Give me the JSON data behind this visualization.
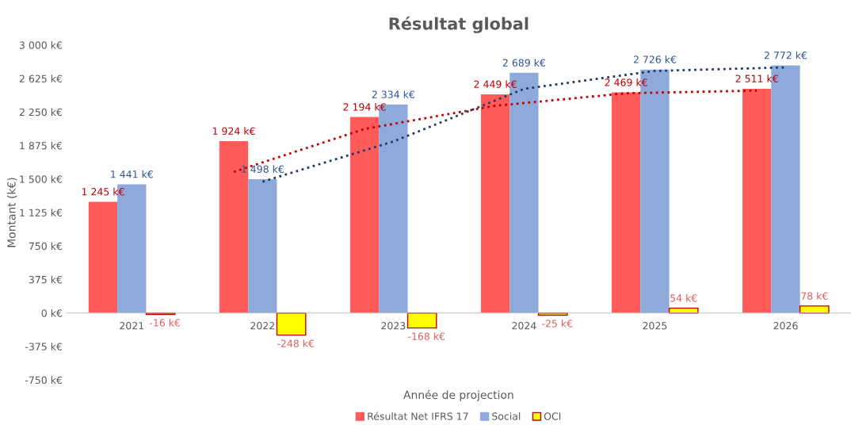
{
  "chart_data": {
    "type": "bar",
    "title": "Résultat global",
    "xlabel": "Année de projection",
    "ylabel": "Montant (k€)",
    "categories": [
      "2021",
      "2022",
      "2023",
      "2024",
      "2025",
      "2026"
    ],
    "series": [
      {
        "name": "Résultat Net IFRS 17",
        "color": "#ff5b5b",
        "values": [
          1245,
          1924,
          2194,
          2449,
          2469,
          2511
        ],
        "value_labels": [
          "1 245 k€",
          "1 924 k€",
          "2 194 k€",
          "2 449 k€",
          "2 469 k€",
          "2 511 k€"
        ]
      },
      {
        "name": "Social",
        "color": "#8eaadb",
        "values": [
          1441,
          1498,
          2334,
          2689,
          2726,
          2772
        ],
        "value_labels": [
          "1 441 k€",
          "1 498 k€",
          "2 334 k€",
          "2 689 k€",
          "2 726 k€",
          "2 772 k€"
        ]
      },
      {
        "name": "OCI",
        "color": "#ffff00",
        "values": [
          -16,
          -248,
          -168,
          -25,
          54,
          78
        ],
        "value_labels": [
          "-16 k€",
          "-248 k€",
          "-168 k€",
          "-25 k€",
          "54 k€",
          "78 k€"
        ]
      },
      {
        "type": "line",
        "color": "#c00000",
        "values": [
          null,
          1580,
          2060,
          2320,
          2460,
          2490
        ]
      },
      {
        "type": "line",
        "color": "#1f3864",
        "values": [
          null,
          1470,
          1920,
          2510,
          2710,
          2750
        ]
      }
    ],
    "ylim": [
      -750,
      3000
    ],
    "yticks": [
      {
        "value": -750,
        "label": "-750 k€"
      },
      {
        "value": -375,
        "label": "-375 k€"
      },
      {
        "value": 0,
        "label": "0 k€"
      },
      {
        "value": 375,
        "label": "375 k€"
      },
      {
        "value": 750,
        "label": "750 k€"
      },
      {
        "value": 1125,
        "label": "1 125 k€"
      },
      {
        "value": 1500,
        "label": "1 500 k€"
      },
      {
        "value": 1875,
        "label": "1 875 k€"
      },
      {
        "value": 2250,
        "label": "2 250 k€"
      },
      {
        "value": 2625,
        "label": "2 625 k€"
      },
      {
        "value": 3000,
        "label": "3 000 k€"
      }
    ],
    "grid": false,
    "legend": "bottom",
    "line_style": "dotted"
  }
}
